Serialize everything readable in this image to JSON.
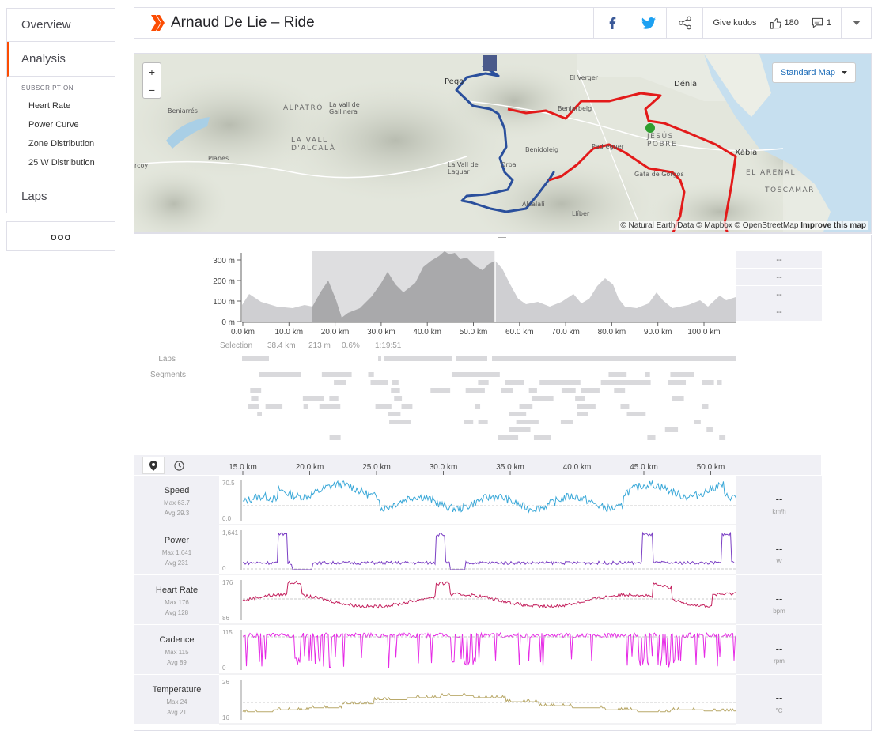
{
  "sidebar": {
    "overview": "Overview",
    "analysis": "Analysis",
    "subscription": "SUBSCRIPTION",
    "items": [
      "Heart Rate",
      "Power Curve",
      "Zone Distribution",
      "25 W Distribution"
    ],
    "laps": "Laps",
    "more": "ooo"
  },
  "header": {
    "title": "Arnaud De Lie – Ride",
    "give_kudos": "Give kudos",
    "kudos_count": "180",
    "comments_count": "1"
  },
  "map": {
    "style_button": "Standard Map",
    "attribution_data": "© Natural Earth Data © Mapbox © OpenStreetMap",
    "attribution_improve": "Improve this map",
    "labels": [
      "Pego",
      "El Verger",
      "Dénia",
      "Beniarrés",
      "ALPATRÓ",
      "La Vall de Gallinera",
      "LA VALL D'ALCALÀ",
      "Beniarbeig",
      "JESÚS POBRE",
      "Xàbia",
      "Benidoleig",
      "Pedreguer",
      "Planes",
      "La Vall de Laguar",
      "Orba",
      "Gata de Gorgos",
      "EL ARENAL",
      "TOSCAMAR",
      "Alcalalí",
      "Llíber",
      "rcoy"
    ],
    "zoom_in": "+",
    "zoom_out": "−"
  },
  "elevation": {
    "y_ticks": [
      "300 m",
      "200 m",
      "100 m",
      "0 m"
    ],
    "x_ticks": [
      "0.0 km",
      "10.0 km",
      "20.0 km",
      "30.0 km",
      "40.0 km",
      "50.0 km",
      "60.0 km",
      "70.0 km",
      "80.0 km",
      "90.0 km",
      "100.0 km"
    ],
    "selection_label": "Selection",
    "selection_values": [
      "38.4 km",
      "213 m",
      "0.6%",
      "1:19:51"
    ],
    "right_values": [
      "--",
      "--",
      "--",
      "--"
    ],
    "laps_label": "Laps",
    "segments_label": "Segments"
  },
  "streams_axis": {
    "ticks": [
      "15.0 km",
      "20.0 km",
      "25.0 km",
      "30.0 km",
      "35.0 km",
      "40.0 km",
      "45.0 km",
      "50.0 km"
    ]
  },
  "streams": [
    {
      "name": "Speed",
      "max": "Max 63.7",
      "avg": "Avg 29.3",
      "ymax": "70.5",
      "ymin": "0.0",
      "value": "--",
      "unit": "km/h",
      "color": "#3aa8d8"
    },
    {
      "name": "Power",
      "max": "Max 1,641",
      "avg": "Avg 231",
      "ymax": "1,641",
      "ymin": "0",
      "value": "--",
      "unit": "W",
      "color": "#7b3fc4"
    },
    {
      "name": "Heart Rate",
      "max": "Max 176",
      "avg": "Avg 128",
      "ymax": "176",
      "ymin": "86",
      "value": "--",
      "unit": "bpm",
      "color": "#c4215e"
    },
    {
      "name": "Cadence",
      "max": "Max 115",
      "avg": "Avg 89",
      "ymax": "115",
      "ymin": "0",
      "value": "--",
      "unit": "rpm",
      "color": "#e62be6"
    },
    {
      "name": "Temperature",
      "max": "Max 24",
      "avg": "Avg 21",
      "ymax": "26",
      "ymin": "16",
      "value": "--",
      "unit": "°C",
      "color": "#b9a96a"
    }
  ]
}
